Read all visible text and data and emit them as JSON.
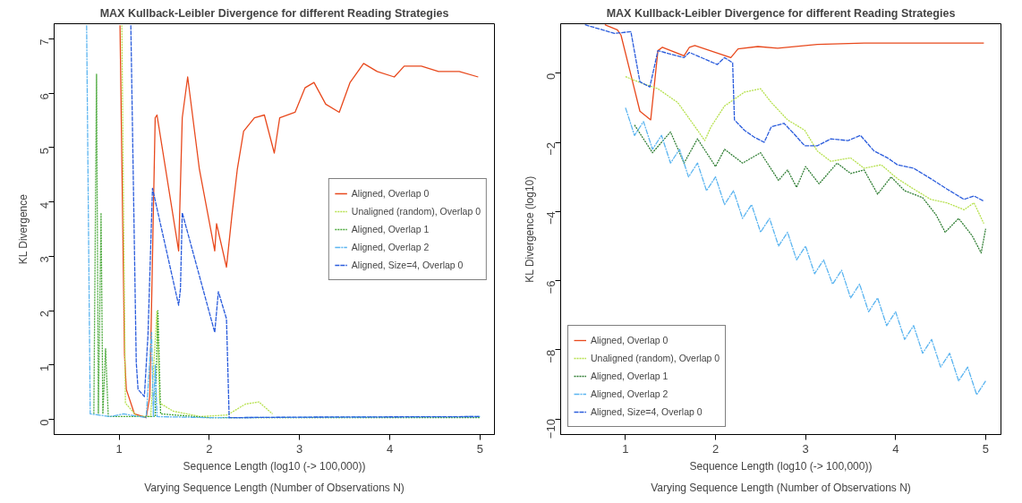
{
  "chart_data": [
    {
      "type": "line",
      "title": "MAX Kullback-Leibler Divergence for different Reading Strategies",
      "xlabel": "Sequence Length (log10 (-> 100,000))",
      "ylabel": "KL Divergence",
      "annotations": [
        "Varying Sequence Length (Number of Observations N)"
      ],
      "xlim": [
        0.28,
        5.16
      ],
      "ylim": [
        -0.28,
        7.28
      ],
      "xticks": [
        1,
        2,
        3,
        4,
        5
      ],
      "yticks": [
        0,
        1,
        2,
        3,
        4,
        5,
        6,
        7
      ],
      "grid": false,
      "legend": "right",
      "series": [
        {
          "name": "Aligned, Overlap 0",
          "color": "#e8491d",
          "line_style": "solid",
          "x": [
            1.01,
            1.06,
            1.08,
            1.17,
            1.3,
            1.34,
            1.4,
            1.42,
            1.66,
            1.7,
            1.76,
            1.89,
            2.06,
            2.08,
            2.19,
            2.25,
            2.31,
            2.38,
            2.5,
            2.61,
            2.72,
            2.78,
            2.95,
            3.06,
            3.16,
            3.29,
            3.44,
            3.56,
            3.71,
            3.86,
            4.05,
            4.16,
            4.35,
            4.54,
            4.77,
            4.98
          ],
          "values": [
            7.25,
            1.19,
            0.55,
            0.1,
            0.03,
            0.42,
            5.55,
            5.6,
            3.1,
            5.55,
            6.3,
            4.6,
            3.1,
            3.6,
            2.8,
            3.75,
            4.6,
            5.3,
            5.55,
            5.6,
            4.9,
            5.55,
            5.65,
            6.1,
            6.2,
            5.8,
            5.65,
            6.2,
            6.55,
            6.4,
            6.3,
            6.5,
            6.5,
            6.4,
            6.4,
            6.3
          ]
        },
        {
          "name": "Unaligned (random), Overlap 0",
          "color": "#b5e04b",
          "line_style": "dotted",
          "x": [
            1.03,
            1.07,
            1.2,
            1.35,
            1.42,
            1.45,
            1.6,
            1.9,
            2.2,
            2.4,
            2.55,
            2.7
          ],
          "values": [
            7.25,
            0.3,
            0.05,
            0.05,
            2.0,
            0.3,
            0.15,
            0.05,
            0.08,
            0.28,
            0.32,
            0.1
          ]
        },
        {
          "name": "Aligned, Overlap 1",
          "color": "#4aa83a",
          "line_style": "dotted",
          "x": [
            0.72,
            0.75,
            0.77,
            0.8,
            0.82,
            0.85,
            0.88,
            1.0,
            1.4,
            1.43,
            1.46,
            2.0,
            5.0
          ],
          "values": [
            0.1,
            6.35,
            0.1,
            3.8,
            0.1,
            1.3,
            0.05,
            0.05,
            0.05,
            2.0,
            0.1,
            0.03,
            0.03
          ]
        },
        {
          "name": "Aligned, Overlap 2",
          "color": "#5ab4f0",
          "line_style": "dotdash",
          "x": [
            0.64,
            0.68,
            0.9,
            1.05,
            1.3,
            1.36,
            1.38,
            1.4,
            1.42,
            2.0,
            5.0
          ],
          "values": [
            7.25,
            0.1,
            0.05,
            0.1,
            0.03,
            1.6,
            0.05,
            1.0,
            0.05,
            0.03,
            0.05
          ]
        },
        {
          "name": "Aligned, Size=4, Overlap 0",
          "color": "#2a5cdc",
          "line_style": "dashed",
          "x": [
            1.13,
            1.19,
            1.21,
            1.28,
            1.32,
            1.37,
            1.66,
            1.68,
            1.7,
            2.06,
            2.1,
            2.19,
            2.22,
            3.0,
            5.0
          ],
          "values": [
            7.25,
            1.05,
            0.55,
            0.42,
            1.55,
            4.25,
            2.1,
            2.4,
            3.8,
            1.6,
            2.35,
            1.85,
            0.03,
            0.04,
            0.05
          ]
        }
      ]
    },
    {
      "type": "line",
      "title": "MAX Kullback-Leibler Divergence for different Reading Strategies",
      "xlabel": "Sequence Length (log10 (-> 100,000))",
      "ylabel": "KL Divergence (log10)",
      "annotations": [
        "Varying Sequence Length (Number of Observations N)"
      ],
      "xlim": [
        0.28,
        5.17
      ],
      "ylim": [
        -10.45,
        1.43
      ],
      "xticks": [
        1,
        2,
        3,
        4,
        5
      ],
      "yticks": [
        0,
        -2,
        -4,
        -6,
        -8,
        -10
      ],
      "grid": false,
      "legend": "bottom left",
      "series": [
        {
          "name": "Aligned, Overlap 0",
          "color": "#e8491d",
          "line_style": "solid",
          "x": [
            0.77,
            0.91,
            0.95,
            1.06,
            1.16,
            1.28,
            1.36,
            1.41,
            1.65,
            1.71,
            1.77,
            2.17,
            2.25,
            2.47,
            2.69,
            3.13,
            3.65,
            4.98
          ],
          "values": [
            1.4,
            1.25,
            1.1,
            -0.05,
            -1.1,
            -1.35,
            0.65,
            0.75,
            0.5,
            0.75,
            0.8,
            0.45,
            0.7,
            0.77,
            0.72,
            0.83,
            0.87,
            0.87
          ]
        },
        {
          "name": "Unaligned (random), Overlap 0",
          "color": "#b5e04b",
          "line_style": "dotted",
          "x": [
            1.0,
            1.14,
            1.36,
            1.58,
            1.8,
            1.88,
            1.95,
            2.1,
            2.32,
            2.5,
            2.62,
            2.8,
            2.99,
            3.13,
            3.28,
            3.5,
            3.65,
            3.84,
            4.02,
            4.2,
            4.39,
            4.57,
            4.76,
            4.87,
            4.98
          ],
          "values": [
            -0.1,
            -0.25,
            -0.45,
            -0.85,
            -1.65,
            -1.95,
            -1.55,
            -0.95,
            -0.55,
            -0.45,
            -0.85,
            -1.35,
            -1.65,
            -2.25,
            -2.55,
            -2.45,
            -2.75,
            -2.65,
            -3.05,
            -3.35,
            -3.65,
            -3.75,
            -3.95,
            -3.75,
            -4.35
          ]
        },
        {
          "name": "Aligned, Overlap 1",
          "color": "#2e7d32",
          "line_style": "dotted",
          "x": [
            1.1,
            1.3,
            1.5,
            1.65,
            1.8,
            2.0,
            2.1,
            2.3,
            2.5,
            2.7,
            2.8,
            2.9,
            3.0,
            3.15,
            3.35,
            3.5,
            3.65,
            3.8,
            3.95,
            4.1,
            4.3,
            4.45,
            4.55,
            4.7,
            4.85,
            4.95,
            5.0
          ],
          "values": [
            -1.5,
            -2.3,
            -1.7,
            -2.6,
            -1.9,
            -2.7,
            -2.2,
            -2.6,
            -2.3,
            -3.1,
            -2.8,
            -3.3,
            -2.7,
            -3.2,
            -2.6,
            -2.9,
            -2.8,
            -3.5,
            -3.0,
            -3.4,
            -3.6,
            -4.1,
            -4.6,
            -4.2,
            -4.7,
            -5.2,
            -4.5
          ]
        },
        {
          "name": "Aligned, Overlap 2",
          "color": "#5ab4f0",
          "line_style": "dotdash",
          "x": [
            1.0,
            1.1,
            1.2,
            1.3,
            1.4,
            1.5,
            1.6,
            1.7,
            1.8,
            1.9,
            2.0,
            2.1,
            2.2,
            2.3,
            2.4,
            2.5,
            2.6,
            2.7,
            2.8,
            2.9,
            3.0,
            3.1,
            3.2,
            3.3,
            3.4,
            3.5,
            3.6,
            3.7,
            3.8,
            3.9,
            4.0,
            4.1,
            4.2,
            4.3,
            4.4,
            4.5,
            4.6,
            4.7,
            4.8,
            4.9,
            5.0
          ],
          "values": [
            -1.0,
            -1.8,
            -1.4,
            -2.2,
            -1.8,
            -2.6,
            -2.2,
            -3.0,
            -2.6,
            -3.4,
            -3.0,
            -3.8,
            -3.4,
            -4.2,
            -3.8,
            -4.6,
            -4.2,
            -5.0,
            -4.6,
            -5.4,
            -5.0,
            -5.8,
            -5.4,
            -6.1,
            -5.7,
            -6.5,
            -6.1,
            -6.9,
            -6.5,
            -7.3,
            -6.9,
            -7.7,
            -7.3,
            -8.1,
            -7.7,
            -8.5,
            -8.1,
            -8.9,
            -8.5,
            -9.3,
            -8.9
          ]
        },
        {
          "name": "Aligned, Size=4, Overlap 0",
          "color": "#2a5cdc",
          "line_style": "dashed",
          "x": [
            0.55,
            0.88,
            1.06,
            1.16,
            1.27,
            1.36,
            1.65,
            1.71,
            2.02,
            2.1,
            2.19,
            2.21,
            2.32,
            2.43,
            2.54,
            2.62,
            2.76,
            2.87,
            2.99,
            3.13,
            3.28,
            3.47,
            3.61,
            3.76,
            3.91,
            4.02,
            4.2,
            4.39,
            4.57,
            4.76,
            4.87,
            4.98
          ],
          "values": [
            1.4,
            1.15,
            1.2,
            -0.25,
            -0.4,
            0.65,
            0.45,
            0.6,
            0.25,
            0.45,
            0.3,
            -1.35,
            -1.65,
            -1.85,
            -2.0,
            -1.55,
            -1.45,
            -1.75,
            -2.1,
            -2.1,
            -1.9,
            -1.95,
            -1.8,
            -2.25,
            -2.45,
            -2.65,
            -2.75,
            -3.05,
            -3.35,
            -3.65,
            -3.55,
            -3.7
          ]
        }
      ]
    }
  ]
}
